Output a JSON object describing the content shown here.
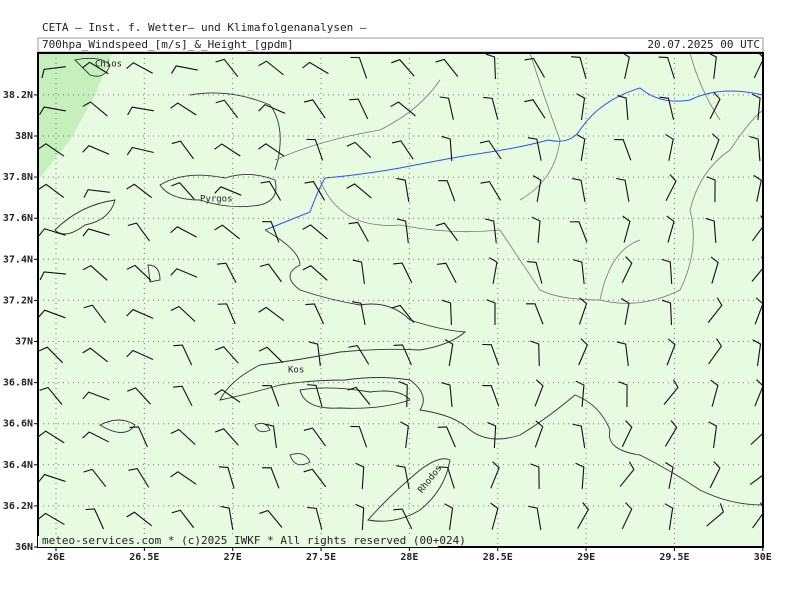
{
  "header": {
    "institute": "CETA – Inst. f. Wetter– und Klimafolgenanalysen –",
    "title": "700hpa_Windspeed_[m/s]_&_Height_[gpdm]",
    "date": "20.07.2025 00 UTC"
  },
  "map": {
    "lat_labels": [
      {
        "value": 36,
        "label": "36N"
      },
      {
        "value": 36.2,
        "label": "36.2N"
      },
      {
        "value": 36.4,
        "label": "36.4N"
      },
      {
        "value": 36.6,
        "label": "36.6N"
      },
      {
        "value": 36.8,
        "label": "36.8N"
      },
      {
        "value": 37,
        "label": "37N"
      },
      {
        "value": 37.2,
        "label": "37.2N"
      },
      {
        "value": 37.4,
        "label": "37.4N"
      },
      {
        "value": 37.6,
        "label": "37.6N"
      },
      {
        "value": 37.8,
        "label": "37.8N"
      },
      {
        "value": 38,
        "label": "38N"
      },
      {
        "value": 38.2,
        "label": "38.2N"
      }
    ],
    "lon_labels": [
      {
        "value": 26,
        "label": "26E"
      },
      {
        "value": 26.5,
        "label": "26.5E"
      },
      {
        "value": 27,
        "label": "27E"
      },
      {
        "value": 27.5,
        "label": "27.5E"
      },
      {
        "value": 28,
        "label": "28E"
      },
      {
        "value": 28.5,
        "label": "28.5E"
      },
      {
        "value": 29,
        "label": "29E"
      },
      {
        "value": 29.5,
        "label": "29.5E"
      },
      {
        "value": 30,
        "label": "30E"
      }
    ],
    "places": [
      "Chios",
      "Pyrgos",
      "Kos",
      "Rhodos"
    ]
  },
  "footer": "meteo-services.com * (c)2025 IWKF * All rights reserved (00+024)"
}
